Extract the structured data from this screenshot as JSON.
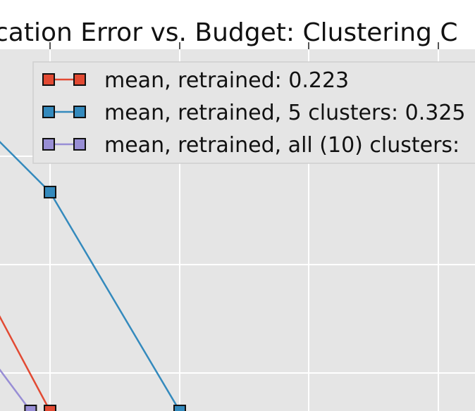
{
  "chart_data": {
    "type": "line",
    "title": "cation Error vs. Budget: Clustering C",
    "xlabel": "",
    "ylabel": "",
    "grid": true,
    "legend_position": "top",
    "background": "#e5e5e5",
    "grid_color": "#ffffff",
    "series": [
      {
        "name": "mean, retrained: 0.223",
        "color": "#e24a33",
        "points": [
          [
            -0.5,
            0.3
          ],
          [
            0,
            0.0
          ]
        ]
      },
      {
        "name": "mean, retrained, 5 clusters: 0.325",
        "color": "#348abd",
        "points": [
          [
            -1,
            0.86
          ],
          [
            0,
            0.54
          ],
          [
            1,
            0.0
          ]
        ]
      },
      {
        "name": "mean, retrained, all (10) clusters:",
        "color": "#988ed5",
        "points": [
          [
            -0.5,
            0.15
          ],
          [
            -0.15,
            0.0
          ]
        ]
      }
    ]
  }
}
